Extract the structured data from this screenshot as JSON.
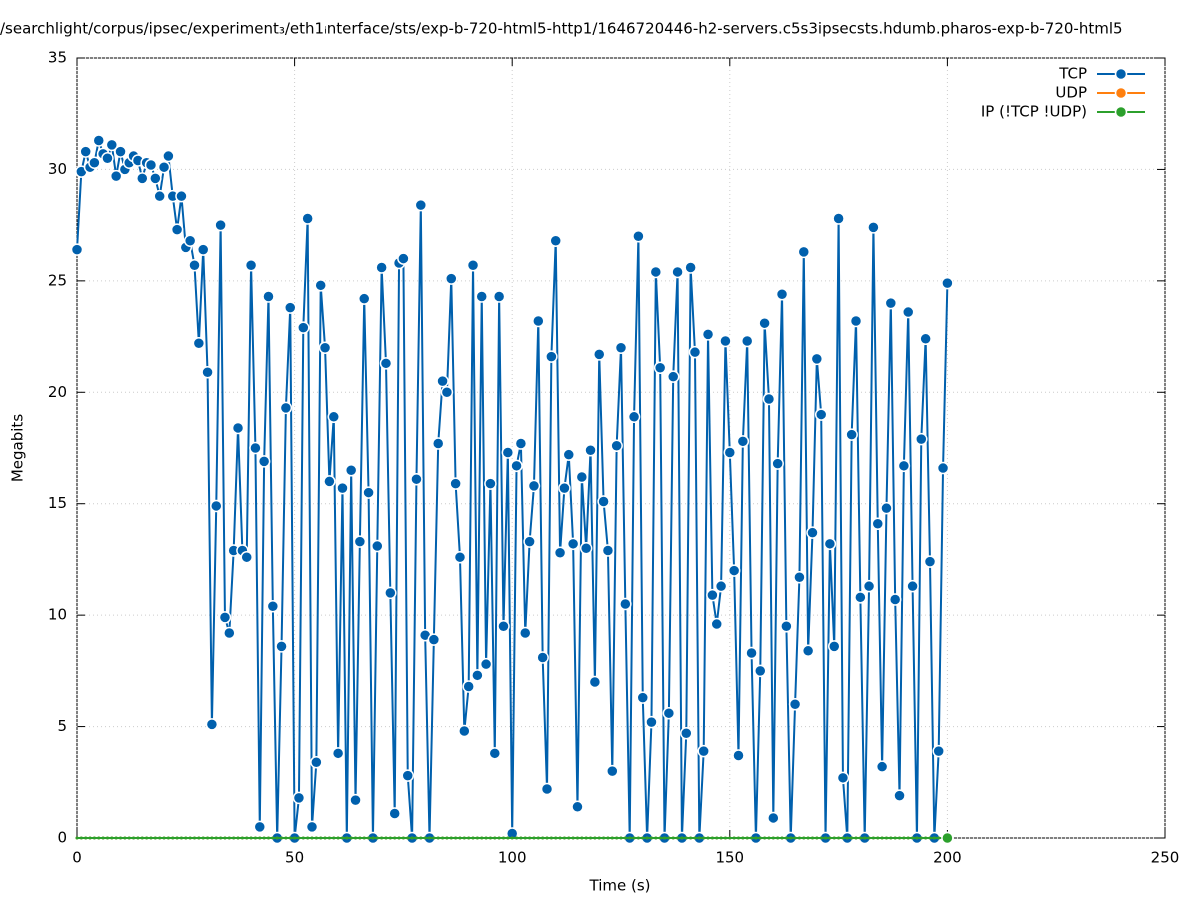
{
  "chart_data": {
    "type": "line",
    "title": "/searchlight/corpus/ipsec/experiment₃/eth1ᵢnterface/sts/exp-b-720-html5-http1/1646720446-h2-servers.c5s3ipsecsts.hdumb.pharos-exp-b-720-html5",
    "x_label": "Time (s)",
    "y_label": "Megabits",
    "xlim": [
      0,
      250
    ],
    "xticks": [
      0,
      50,
      100,
      150,
      200,
      250
    ],
    "ylim": [
      0,
      35
    ],
    "yticks": [
      0,
      5,
      10,
      15,
      20,
      25,
      30,
      35
    ],
    "grid": true,
    "legend": "top-right",
    "x": [
      0,
      1,
      2,
      3,
      4,
      5,
      6,
      7,
      8,
      9,
      10,
      11,
      12,
      13,
      14,
      15,
      16,
      17,
      18,
      19,
      20,
      21,
      22,
      23,
      24,
      25,
      26,
      27,
      28,
      29,
      30,
      31,
      32,
      33,
      34,
      35,
      36,
      37,
      38,
      39,
      40,
      41,
      42,
      43,
      44,
      45,
      46,
      47,
      48,
      49,
      50,
      51,
      52,
      53,
      54,
      55,
      56,
      57,
      58,
      59,
      60,
      61,
      62,
      63,
      64,
      65,
      66,
      67,
      68,
      69,
      70,
      71,
      72,
      73,
      74,
      75,
      76,
      77,
      78,
      79,
      80,
      81,
      82,
      83,
      84,
      85,
      86,
      87,
      88,
      89,
      90,
      91,
      92,
      93,
      94,
      95,
      96,
      97,
      98,
      99,
      100,
      101,
      102,
      103,
      104,
      105,
      106,
      107,
      108,
      109,
      110,
      111,
      112,
      113,
      114,
      115,
      116,
      117,
      118,
      119,
      120,
      121,
      122,
      123,
      124,
      125,
      126,
      127,
      128,
      129,
      130,
      131,
      132,
      133,
      134,
      135,
      136,
      137,
      138,
      139,
      140,
      141,
      142,
      143,
      144,
      145,
      146,
      147,
      148,
      149,
      150,
      151,
      152,
      153,
      154,
      155,
      156,
      157,
      158,
      159,
      160,
      161,
      162,
      163,
      164,
      165,
      166,
      167,
      168,
      169,
      170,
      171,
      172,
      173,
      174,
      175,
      176,
      177,
      178,
      179,
      180,
      181,
      182,
      183,
      184,
      185,
      186,
      187,
      188,
      189,
      190,
      191,
      192,
      193,
      194,
      195,
      196,
      197,
      198,
      199,
      200
    ],
    "series": [
      {
        "name": "TCP",
        "color": "#0060ad",
        "values": [
          26.4,
          29.9,
          30.8,
          30.1,
          30.3,
          31.3,
          30.7,
          30.5,
          31.1,
          29.7,
          30.8,
          30.0,
          30.3,
          30.6,
          30.4,
          29.6,
          30.3,
          30.2,
          29.6,
          28.8,
          30.1,
          30.6,
          28.8,
          27.3,
          28.8,
          26.5,
          26.8,
          25.7,
          22.2,
          26.4,
          20.9,
          5.1,
          14.9,
          27.5,
          9.9,
          9.2,
          12.9,
          18.4,
          12.9,
          12.6,
          25.7,
          17.5,
          0.5,
          16.9,
          24.3,
          10.4,
          0,
          8.6,
          19.3,
          23.8,
          0,
          1.8,
          22.9,
          27.8,
          0.5,
          3.4,
          24.8,
          22.0,
          16.0,
          18.9,
          3.8,
          15.7,
          0,
          16.5,
          1.7,
          13.3,
          24.2,
          15.5,
          0,
          13.1,
          25.6,
          21.3,
          11.0,
          1.1,
          25.8,
          26.0,
          2.8,
          0,
          16.1,
          28.4,
          9.1,
          0,
          8.9,
          17.7,
          20.5,
          20.0,
          25.1,
          15.9,
          12.6,
          4.8,
          6.8,
          25.7,
          7.3,
          24.3,
          7.8,
          15.9,
          3.8,
          24.3,
          9.5,
          17.3,
          0.2,
          16.7,
          17.7,
          9.2,
          13.3,
          15.8,
          23.2,
          8.1,
          2.2,
          21.6,
          26.8,
          12.8,
          15.7,
          17.2,
          13.2,
          1.4,
          16.2,
          13.0,
          17.4,
          7.0,
          21.7,
          15.1,
          12.9,
          3.0,
          17.6,
          22.0,
          10.5,
          0,
          18.9,
          27.0,
          6.3,
          0,
          5.2,
          25.4,
          21.1,
          0,
          5.6,
          20.7,
          25.4,
          0,
          4.7,
          25.6,
          21.8,
          0,
          3.9,
          22.6,
          10.9,
          9.6,
          11.3,
          22.3,
          17.3,
          12.0,
          3.7,
          17.8,
          22.3,
          8.3,
          0,
          7.5,
          23.1,
          19.7,
          0.9,
          16.8,
          24.4,
          9.5,
          0,
          6.0,
          11.7,
          26.3,
          8.4,
          13.7,
          21.5,
          19.0,
          0,
          13.2,
          8.6,
          27.8,
          2.7,
          0,
          18.1,
          23.2,
          10.8,
          0,
          11.3,
          27.4,
          14.1,
          3.2,
          14.8,
          24.0,
          10.7,
          1.9,
          16.7,
          23.6,
          11.3,
          0,
          17.9,
          22.4,
          12.4,
          0,
          3.9,
          16.6,
          24.9
        ]
      },
      {
        "name": "UDP",
        "color": "#ff7f0e",
        "values": [
          0,
          0,
          0,
          0,
          0,
          0,
          0,
          0,
          0,
          0,
          0,
          0,
          0,
          0,
          0,
          0,
          0,
          0,
          0,
          0,
          0,
          0,
          0,
          0,
          0,
          0,
          0,
          0,
          0,
          0,
          0,
          0,
          0,
          0,
          0,
          0,
          0,
          0,
          0,
          0,
          0,
          0,
          0,
          0,
          0,
          0,
          0,
          0,
          0,
          0,
          0,
          0,
          0,
          0,
          0,
          0,
          0,
          0,
          0,
          0,
          0,
          0,
          0,
          0,
          0,
          0,
          0,
          0,
          0,
          0,
          0,
          0,
          0,
          0,
          0,
          0,
          0,
          0,
          0,
          0,
          0,
          0,
          0,
          0,
          0,
          0,
          0,
          0,
          0,
          0,
          0,
          0,
          0,
          0,
          0,
          0,
          0,
          0,
          0,
          0,
          0,
          0,
          0,
          0,
          0,
          0,
          0,
          0,
          0,
          0,
          0,
          0,
          0,
          0,
          0,
          0,
          0,
          0,
          0,
          0,
          0,
          0,
          0,
          0,
          0,
          0,
          0,
          0,
          0,
          0,
          0,
          0,
          0,
          0,
          0,
          0,
          0,
          0,
          0,
          0,
          0,
          0,
          0,
          0,
          0,
          0,
          0,
          0,
          0,
          0,
          0,
          0,
          0,
          0,
          0,
          0,
          0,
          0,
          0,
          0,
          0,
          0,
          0,
          0,
          0,
          0,
          0,
          0,
          0,
          0,
          0,
          0,
          0,
          0,
          0,
          0,
          0,
          0,
          0,
          0,
          0,
          0,
          0,
          0,
          0,
          0,
          0,
          0,
          0,
          0,
          0,
          0,
          0,
          0,
          0,
          0,
          0,
          0,
          0,
          0,
          0
        ]
      },
      {
        "name": "IP (!TCP  !UDP)",
        "color": "#2ca02c",
        "values": [
          0,
          0,
          0,
          0,
          0,
          0,
          0,
          0,
          0,
          0,
          0,
          0,
          0,
          0,
          0,
          0,
          0,
          0,
          0,
          0,
          0,
          0,
          0,
          0,
          0,
          0,
          0,
          0,
          0,
          0,
          0,
          0,
          0,
          0,
          0,
          0,
          0,
          0,
          0,
          0,
          0,
          0,
          0,
          0,
          0,
          0,
          0,
          0,
          0,
          0,
          0,
          0,
          0,
          0,
          0,
          0,
          0,
          0,
          0,
          0,
          0,
          0,
          0,
          0,
          0,
          0,
          0,
          0,
          0,
          0,
          0,
          0,
          0,
          0,
          0,
          0,
          0,
          0,
          0,
          0,
          0,
          0,
          0,
          0,
          0,
          0,
          0,
          0,
          0,
          0,
          0,
          0,
          0,
          0,
          0,
          0,
          0,
          0,
          0,
          0,
          0,
          0,
          0,
          0,
          0,
          0,
          0,
          0,
          0,
          0,
          0,
          0,
          0,
          0,
          0,
          0,
          0,
          0,
          0,
          0,
          0,
          0,
          0,
          0,
          0,
          0,
          0,
          0,
          0,
          0,
          0,
          0,
          0,
          0,
          0,
          0,
          0,
          0,
          0,
          0,
          0,
          0,
          0,
          0,
          0,
          0,
          0,
          0,
          0,
          0,
          0,
          0,
          0,
          0,
          0,
          0,
          0,
          0,
          0,
          0,
          0,
          0,
          0,
          0,
          0,
          0,
          0,
          0,
          0,
          0,
          0,
          0,
          0,
          0,
          0,
          0,
          0,
          0,
          0,
          0,
          0,
          0,
          0,
          0,
          0,
          0,
          0,
          0,
          0,
          0,
          0,
          0,
          0,
          0,
          0,
          0,
          0,
          0,
          0,
          0,
          0
        ]
      }
    ]
  }
}
